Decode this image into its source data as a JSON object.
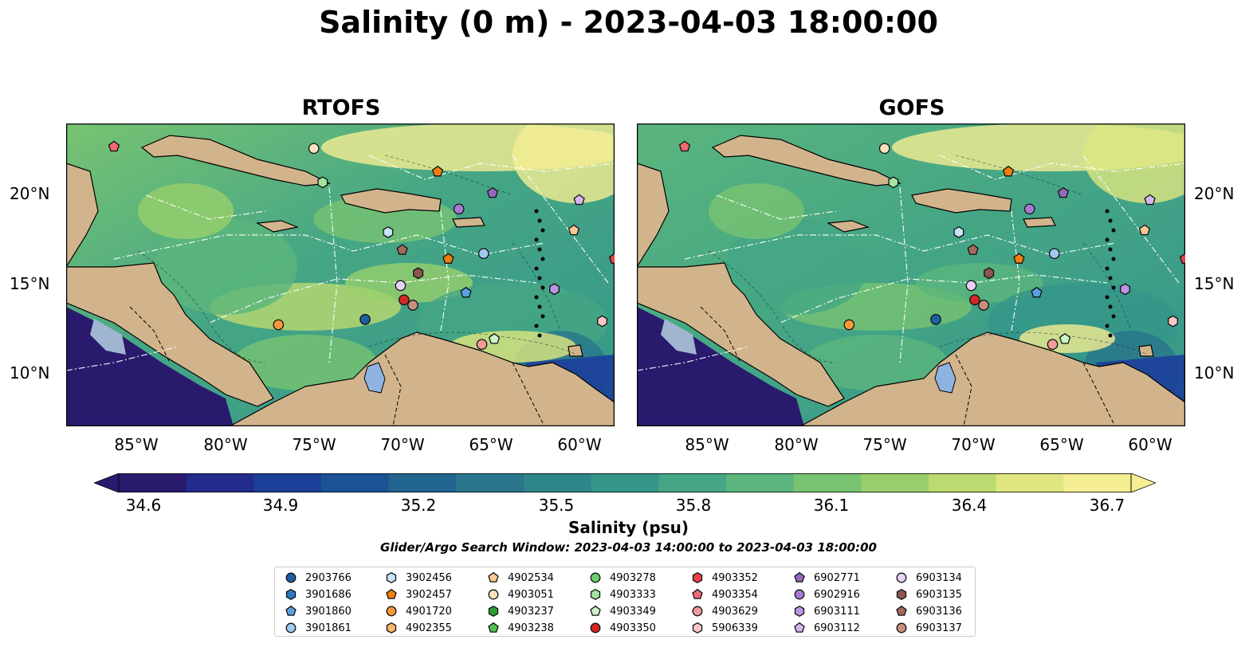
{
  "title": "Salinity (0 m) - 2023-04-03 18:00:00",
  "panels": [
    {
      "title": "RTOFS"
    },
    {
      "title": "GOFS"
    }
  ],
  "map": {
    "lon_range": [
      -89,
      -58
    ],
    "lat_range": [
      7,
      24
    ],
    "lon_ticks": [
      "85°W",
      "80°W",
      "75°W",
      "70°W",
      "65°W",
      "60°W"
    ],
    "lat_ticks": [
      "20°N",
      "15°N",
      "10°N"
    ],
    "land_color": "#d2b48c",
    "colormap": [
      "#2a1a6e",
      "#232c8c",
      "#1c3f9a",
      "#1a5294",
      "#21648f",
      "#28758c",
      "#2e858a",
      "#35968a",
      "#45a685",
      "#5bb57c",
      "#78c372",
      "#98cf6b",
      "#bbda6f",
      "#dfe67f",
      "#f5ee92"
    ]
  },
  "colorbar": {
    "label": "Salinity (psu)",
    "range": [
      34.6,
      36.7
    ],
    "ticks": [
      "34.6",
      "34.9",
      "35.2",
      "35.5",
      "35.8",
      "36.1",
      "36.4",
      "36.7"
    ]
  },
  "search_window": "Glider/Argo Search Window: 2023-04-03 14:00:00 to 2023-04-03 18:00:00",
  "floats": [
    {
      "id": "2903766",
      "marker": "circle",
      "color": "#1f5fa6",
      "lon": -72.1,
      "lat": 13.0
    },
    {
      "id": "3901686",
      "marker": "hexagon",
      "color": "#2e78c2",
      "lon": null,
      "lat": null
    },
    {
      "id": "3901860",
      "marker": "pentagon",
      "color": "#5aa0e0",
      "lon": -66.4,
      "lat": 14.5
    },
    {
      "id": "3901861",
      "marker": "circle",
      "color": "#9fcaf0",
      "lon": -65.4,
      "lat": 16.7
    },
    {
      "id": "3902456",
      "marker": "hexagon",
      "color": "#c5e4f8",
      "lon": -70.8,
      "lat": 17.9
    },
    {
      "id": "3902457",
      "marker": "pentagon",
      "color": "#f07f0e",
      "lon": -67.4,
      "lat": 16.4
    },
    {
      "id": "4901720",
      "marker": "circle",
      "color": "#f59a3a",
      "lon": -77.0,
      "lat": 12.7
    },
    {
      "id": "4902355",
      "marker": "hexagon",
      "color": "#f8b76a",
      "lon": null,
      "lat": null
    },
    {
      "id": "4902534",
      "marker": "pentagon",
      "color": "#f8c890",
      "lon": -60.3,
      "lat": 18.0
    },
    {
      "id": "4903051",
      "marker": "circle",
      "color": "#fde2c2",
      "lon": -75.0,
      "lat": 22.6
    },
    {
      "id": "4903237",
      "marker": "hexagon",
      "color": "#2ca02c",
      "lon": null,
      "lat": null
    },
    {
      "id": "4903238",
      "marker": "pentagon",
      "color": "#52c152",
      "lon": null,
      "lat": null
    },
    {
      "id": "4903278",
      "marker": "circle",
      "color": "#6ccf6c",
      "lon": null,
      "lat": null
    },
    {
      "id": "4903333",
      "marker": "hexagon",
      "color": "#a5e3a0",
      "lon": -74.5,
      "lat": 20.7
    },
    {
      "id": "4903349",
      "marker": "pentagon",
      "color": "#cdf5c8",
      "lon": -64.8,
      "lat": 11.9
    },
    {
      "id": "4903350",
      "marker": "circle",
      "color": "#d62728",
      "lon": -69.9,
      "lat": 14.1
    },
    {
      "id": "4903352",
      "marker": "hexagon",
      "color": "#e8404a",
      "lon": null,
      "lat": null
    },
    {
      "id": "4903354",
      "marker": "pentagon",
      "color": "#f06a72",
      "lon": -86.3,
      "lat": 22.7
    },
    {
      "id": "4903629",
      "marker": "circle",
      "color": "#f39a9a",
      "lon": -65.5,
      "lat": 11.6
    },
    {
      "id": "5906339",
      "marker": "hexagon",
      "color": "#fbc6c6",
      "lon": -58.7,
      "lat": 12.9
    },
    {
      "id": "6902771",
      "marker": "pentagon",
      "color": "#9467bd",
      "lon": -64.9,
      "lat": 20.1
    },
    {
      "id": "6902916",
      "marker": "circle",
      "color": "#a77ad0",
      "lon": -66.8,
      "lat": 19.2
    },
    {
      "id": "6903111",
      "marker": "hexagon",
      "color": "#bb95e0",
      "lon": -61.4,
      "lat": 14.7
    },
    {
      "id": "6903112",
      "marker": "pentagon",
      "color": "#d2b6f0",
      "lon": -60.0,
      "lat": 19.7
    },
    {
      "id": "6903134",
      "marker": "circle",
      "color": "#e6d1f8",
      "lon": -70.1,
      "lat": 14.9
    },
    {
      "id": "6903135",
      "marker": "hexagon",
      "color": "#8c564b",
      "lon": -69.1,
      "lat": 15.6
    },
    {
      "id": "6903136",
      "marker": "pentagon",
      "color": "#a5695d",
      "lon": -70.0,
      "lat": 16.9
    },
    {
      "id": "6903137",
      "marker": "circle",
      "color": "#c89080",
      "lon": -69.4,
      "lat": 13.8
    },
    {
      "id": "extra1",
      "marker": "pentagon",
      "color": "#e8404a",
      "lon": -58.0,
      "lat": 16.4
    },
    {
      "id": "extra2",
      "marker": "pentagon",
      "color": "#f07f0e",
      "lon": -68.0,
      "lat": 21.3
    }
  ]
}
